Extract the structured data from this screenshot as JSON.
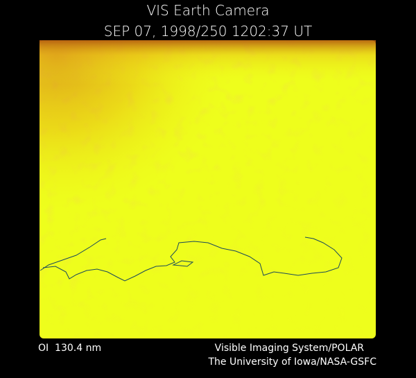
{
  "header": {
    "title": "VIS Earth Camera",
    "timestamp": "SEP 07, 1998/250 1202:37 UT"
  },
  "footer": {
    "wavelength": "OI  130.4 nm",
    "instrument": "Visible Imaging System/POLAR",
    "institution": "The University of Iowa/NASA-GSFC"
  }
}
